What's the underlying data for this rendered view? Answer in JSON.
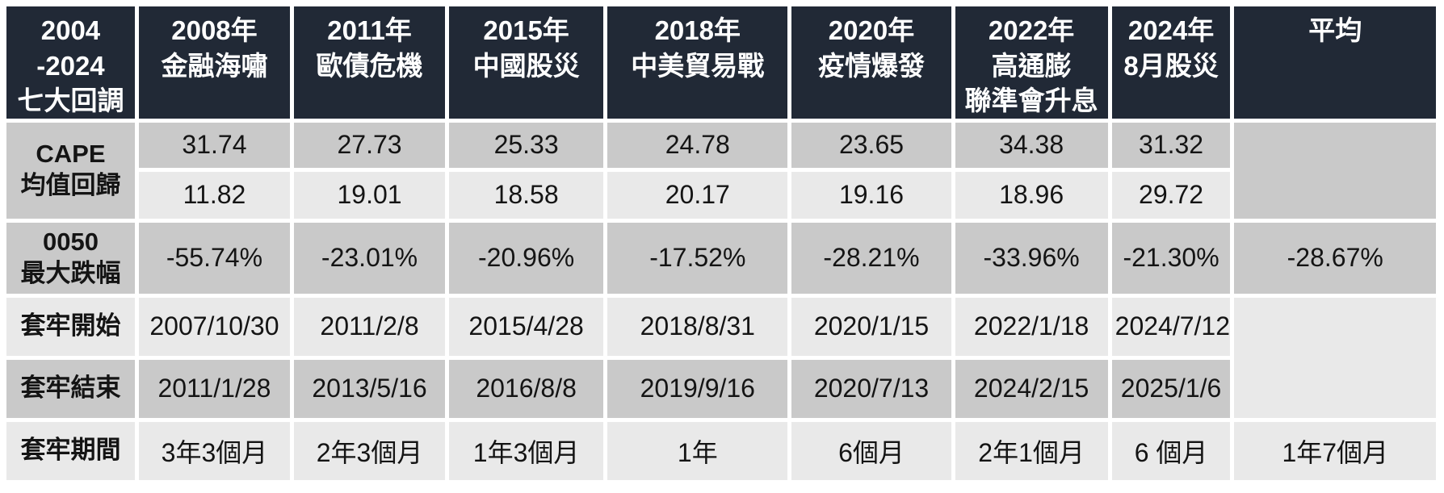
{
  "colors": {
    "header_bg": "#212936",
    "header_text": "#ffffff",
    "row_dark": "#c9c9c9",
    "row_light": "#e9e9e9",
    "body_text": "#141414",
    "gap": "#ffffff"
  },
  "table": {
    "header": {
      "label": "2004\n-2024\n七大回調",
      "c2008": "2008年\n金融海嘯",
      "c2011": "2011年\n歐債危機",
      "c2015": "2015年\n中國股災",
      "c2018": "2018年\n中美貿易戰",
      "c2020": "2020年\n疫情爆發",
      "c2022": "2022年\n高通膨\n聯準會升息",
      "c2024": "2024年\n8月股災",
      "avg": "平均"
    },
    "rows": {
      "cape": {
        "label": "CAPE\n均值回歸",
        "peak": [
          "31.74",
          "27.73",
          "25.33",
          "24.78",
          "23.65",
          "34.38",
          "31.32"
        ],
        "trough": [
          "11.82",
          "19.01",
          "18.58",
          "20.17",
          "19.16",
          "18.96",
          "29.72"
        ],
        "avg": ""
      },
      "drawdown": {
        "label": "0050\n最大跌幅",
        "values": [
          "-55.74%",
          "-23.01%",
          "-20.96%",
          "-17.52%",
          "-28.21%",
          "-33.96%",
          "-21.30%"
        ],
        "avg": "-28.67%"
      },
      "start": {
        "label": "套牢開始",
        "values": [
          "2007/10/30",
          "2011/2/8",
          "2015/4/28",
          "2018/8/31",
          "2020/1/15",
          "2022/1/18",
          "2024/7/12"
        ],
        "avg": ""
      },
      "end": {
        "label": "套牢結束",
        "values": [
          "2011/1/28",
          "2013/5/16",
          "2016/8/8",
          "2019/9/16",
          "2020/7/13",
          "2024/2/15",
          "2025/1/6"
        ]
      },
      "period": {
        "label": "套牢期間",
        "values": [
          "3年3個月",
          "2年3個月",
          "1年3個月",
          "1年",
          "6個月",
          "2年1個月",
          "6 個月"
        ],
        "avg": "1年7個月"
      }
    }
  }
}
